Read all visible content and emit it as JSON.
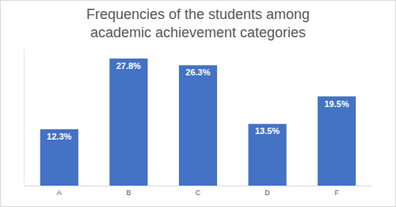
{
  "chart_data": {
    "type": "bar",
    "title": "Frequencies of the students among academic achievement categories",
    "categories": [
      "A",
      "B",
      "C",
      "D",
      "F"
    ],
    "values": [
      12.3,
      27.8,
      26.3,
      13.5,
      19.5
    ],
    "value_labels": [
      "12.3%",
      "27.8%",
      "26.3%",
      "13.5%",
      "19.5%"
    ],
    "color": "#4472c4",
    "ylim": [
      0,
      30
    ],
    "grid": false,
    "data_labels": true,
    "tick_labels": "x"
  }
}
